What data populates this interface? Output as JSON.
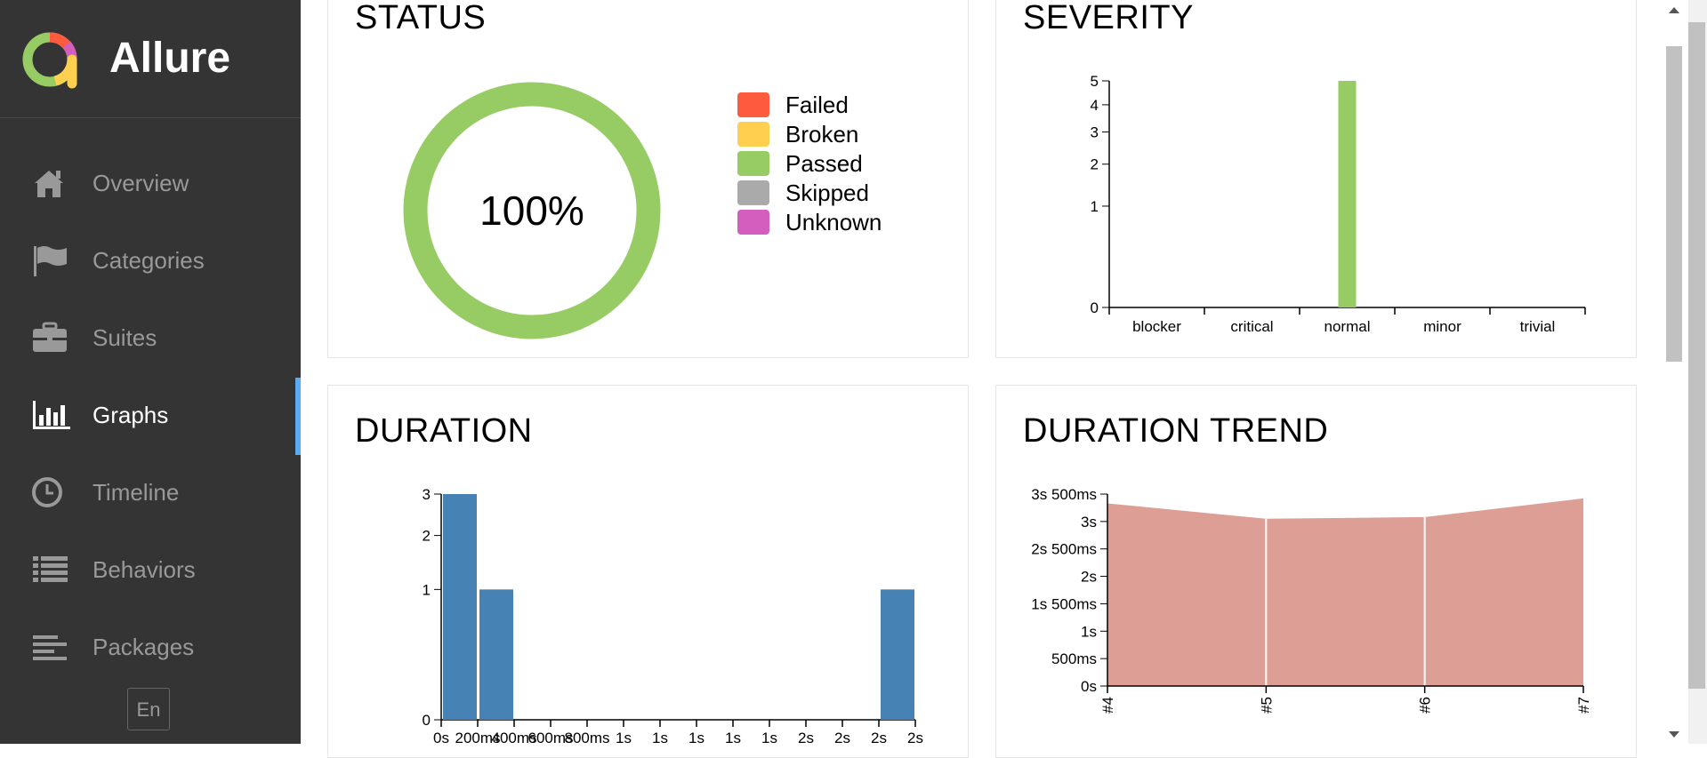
{
  "app": {
    "name": "Allure"
  },
  "sidebar": {
    "items": [
      {
        "label": "Overview",
        "icon": "home-icon"
      },
      {
        "label": "Categories",
        "icon": "flag-icon"
      },
      {
        "label": "Suites",
        "icon": "briefcase-icon"
      },
      {
        "label": "Graphs",
        "icon": "bar-chart-icon",
        "active": true
      },
      {
        "label": "Timeline",
        "icon": "clock-icon"
      },
      {
        "label": "Behaviors",
        "icon": "list-icon"
      },
      {
        "label": "Packages",
        "icon": "align-left-icon"
      }
    ],
    "language_button": "En"
  },
  "cards": {
    "status": {
      "title": "STATUS"
    },
    "severity": {
      "title": "SEVERITY"
    },
    "duration": {
      "title": "DURATION"
    },
    "duration_trend": {
      "title": "DURATION TREND"
    }
  },
  "colors": {
    "failed": "#fd5a3e",
    "broken": "#ffd050",
    "passed": "#97cc64",
    "skipped": "#aaaaaa",
    "unknown": "#d35ebe",
    "duration_bar": "#4682b4",
    "trend_area": "#dd9e95",
    "accent": "#5aabf2"
  },
  "chart_data": [
    {
      "type": "pie",
      "center_label": "100%",
      "categories": [
        "Failed",
        "Broken",
        "Passed",
        "Skipped",
        "Unknown"
      ],
      "values": [
        0,
        0,
        5,
        0,
        0
      ]
    },
    {
      "type": "bar",
      "categories": [
        "blocker",
        "critical",
        "normal",
        "minor",
        "trivial"
      ],
      "values": [
        0,
        0,
        5,
        0,
        0
      ],
      "yticks": [
        "0",
        "1",
        "2",
        "3",
        "4",
        "5"
      ],
      "ylim": [
        0,
        5
      ],
      "yscale": "sqrt"
    },
    {
      "type": "bar",
      "xtick_labels": [
        "0s",
        "200ms",
        "400ms",
        "600ms",
        "800ms",
        "1s",
        "1s",
        "1s",
        "1s",
        "1s",
        "2s",
        "2s",
        "2s",
        "2s"
      ],
      "bins": [
        {
          "bin": 0,
          "value": 3
        },
        {
          "bin": 1,
          "value": 1
        },
        {
          "bin": 12,
          "value": 1
        }
      ],
      "yticks": [
        "0",
        "1",
        "2",
        "3"
      ],
      "ylim": [
        0,
        3
      ],
      "yscale": "sqrt"
    },
    {
      "type": "area",
      "categories": [
        "#4",
        "#5",
        "#6",
        "#7"
      ],
      "values_ms": [
        3330,
        3050,
        3080,
        3420
      ],
      "yticks": [
        "0s",
        "500ms",
        "1s",
        "1s 500ms",
        "2s",
        "2s 500ms",
        "3s",
        "3s 500ms"
      ],
      "ylim_ms": [
        0,
        3500
      ]
    }
  ]
}
